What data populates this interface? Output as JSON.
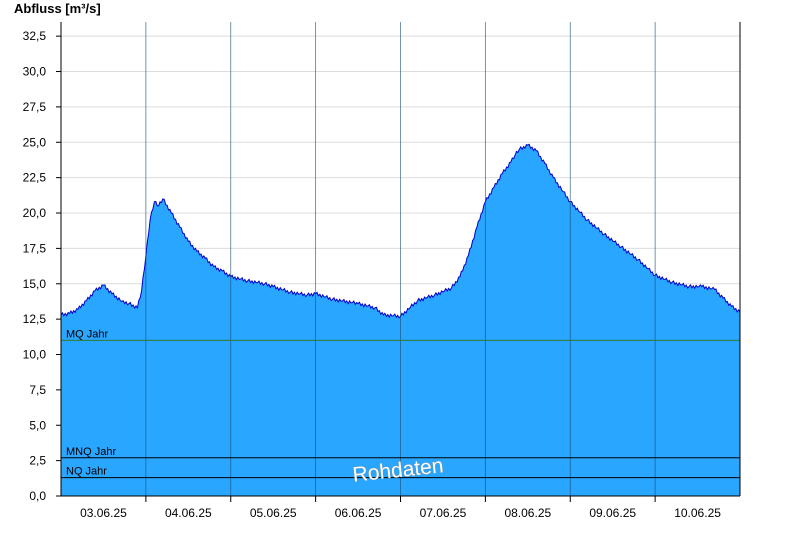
{
  "chart_data": {
    "type": "area",
    "ylabel": "Abfluss [m³/s]",
    "ylim": [
      0,
      33.5
    ],
    "yticks": [
      "0,0",
      "2,5",
      "5,0",
      "7,5",
      "10,0",
      "12,5",
      "15,0",
      "17,5",
      "20,0",
      "22,5",
      "25,0",
      "27,5",
      "30,0",
      "32,5"
    ],
    "xlim": [
      0,
      8
    ],
    "xtick_labels": [
      "03.06.25",
      "04.06.25",
      "05.06.25",
      "06.06.25",
      "07.06.25",
      "08.06.25",
      "09.06.25",
      "10.06.25"
    ],
    "grid": true,
    "colors": {
      "fill": "#29a6ff",
      "line": "#0000cc",
      "mq": "#2e7d32",
      "ref": "#000000"
    },
    "series": [
      {
        "x": [
          0,
          0.1,
          0.2,
          0.3,
          0.4,
          0.5,
          0.6,
          0.75,
          0.8,
          0.9,
          0.95,
          1.0,
          1.05,
          1.1,
          1.15,
          1.2,
          1.3,
          1.4,
          1.5,
          1.6,
          1.7,
          1.8,
          1.9,
          2.0,
          2.2,
          2.4,
          2.5,
          2.7,
          2.9,
          3.0,
          3.2,
          3.5,
          3.7,
          3.8,
          4.0,
          4.2,
          4.4,
          4.6,
          4.7,
          4.8,
          4.9,
          5.0,
          5.1,
          5.2,
          5.3,
          5.35,
          5.4,
          5.5,
          5.6,
          5.7,
          5.8,
          6.0,
          6.2,
          6.4,
          6.6,
          6.8,
          7.0,
          7.2,
          7.4,
          7.55,
          7.7,
          7.8,
          7.9,
          8.0
        ],
        "values": [
          12.8,
          12.9,
          13.2,
          13.8,
          14.5,
          14.9,
          14.3,
          13.6,
          13.6,
          13.3,
          14.5,
          17.0,
          19.5,
          20.8,
          20.5,
          21.0,
          20.0,
          19.0,
          18.0,
          17.3,
          16.8,
          16.2,
          15.9,
          15.5,
          15.2,
          15.0,
          14.8,
          14.4,
          14.2,
          14.3,
          13.9,
          13.6,
          13.3,
          12.8,
          12.7,
          13.8,
          14.2,
          14.7,
          15.5,
          17.0,
          19.0,
          20.8,
          21.8,
          22.8,
          23.6,
          24.1,
          24.5,
          24.8,
          24.4,
          23.5,
          22.5,
          20.8,
          19.5,
          18.5,
          17.6,
          16.7,
          15.6,
          15.1,
          14.8,
          14.8,
          14.6,
          14.0,
          13.4,
          13.0
        ]
      }
    ],
    "reference_lines": [
      {
        "label": "MQ Jahr",
        "value": 11.0
      },
      {
        "label": "MNQ Jahr",
        "value": 2.7
      },
      {
        "label": "NQ Jahr",
        "value": 1.3
      }
    ],
    "watermark": "Rohdaten"
  }
}
